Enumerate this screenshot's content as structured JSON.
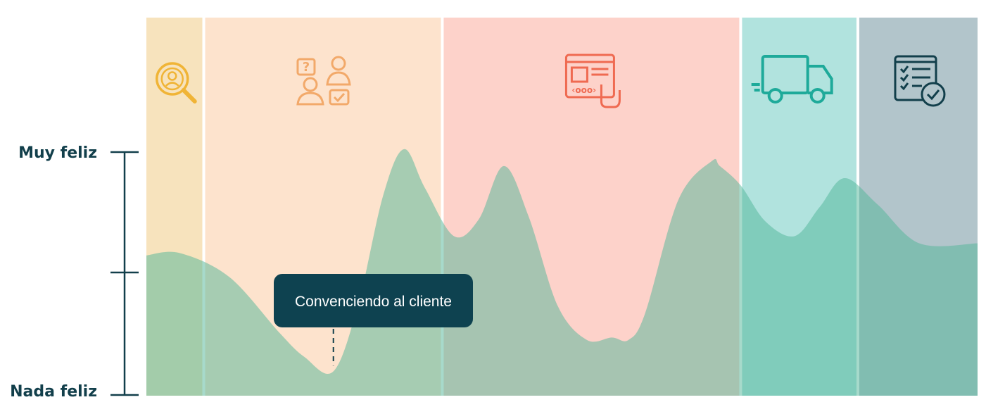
{
  "chart_data": {
    "type": "area",
    "title": "",
    "xlabel": "",
    "ylabel": "",
    "y_axis_labels": {
      "top": "Muy feliz",
      "bottom": "Nada feliz"
    },
    "ylim": [
      0,
      1
    ],
    "xlim": [
      0,
      1
    ],
    "grid": false,
    "stages": [
      {
        "name": "investigacion",
        "icon": "magnifier-person-icon",
        "color": "#f7e3bd",
        "icon_color": "#f0b436",
        "x_start": 0.0,
        "x_end": 0.069
      },
      {
        "name": "consulta",
        "icon": "chat-people-icon",
        "color": "#fde3cd",
        "icon_color": "#f2a96a",
        "x_start": 0.069,
        "x_end": 0.356
      },
      {
        "name": "compra",
        "icon": "web-shop-click-icon",
        "color": "#fdd2ca",
        "icon_color": "#ef6a51",
        "x_start": 0.356,
        "x_end": 0.715
      },
      {
        "name": "envio",
        "icon": "delivery-truck-icon",
        "color": "#b1e3de",
        "icon_color": "#1eaa9a",
        "x_start": 0.715,
        "x_end": 0.856
      },
      {
        "name": "resena",
        "icon": "checklist-icon",
        "color": "#b2c5cb",
        "icon_color": "#123f4b",
        "x_start": 0.856,
        "x_end": 1.0
      }
    ],
    "series": [
      {
        "x": [
          0.0,
          0.04,
          0.1,
          0.16,
          0.19,
          0.225,
          0.255,
          0.285,
          0.31,
          0.335,
          0.37,
          0.4,
          0.43,
          0.46,
          0.495,
          0.53,
          0.56,
          0.58,
          0.6,
          0.64,
          0.68,
          0.69,
          0.715,
          0.745,
          0.78,
          0.81,
          0.84,
          0.88,
          0.93,
          1.0
        ],
        "y": [
          0.54,
          0.55,
          0.45,
          0.22,
          0.12,
          0.06,
          0.34,
          0.79,
          0.98,
          0.82,
          0.62,
          0.69,
          0.91,
          0.7,
          0.33,
          0.19,
          0.2,
          0.19,
          0.3,
          0.77,
          0.93,
          0.91,
          0.83,
          0.68,
          0.62,
          0.74,
          0.86,
          0.75,
          0.59,
          0.59
        ]
      }
    ],
    "series_color": "#4fb597",
    "series_opacity": 0.5,
    "annotation": {
      "text": "Convenciendo al cliente",
      "x": 0.225,
      "y": 0.06
    }
  }
}
